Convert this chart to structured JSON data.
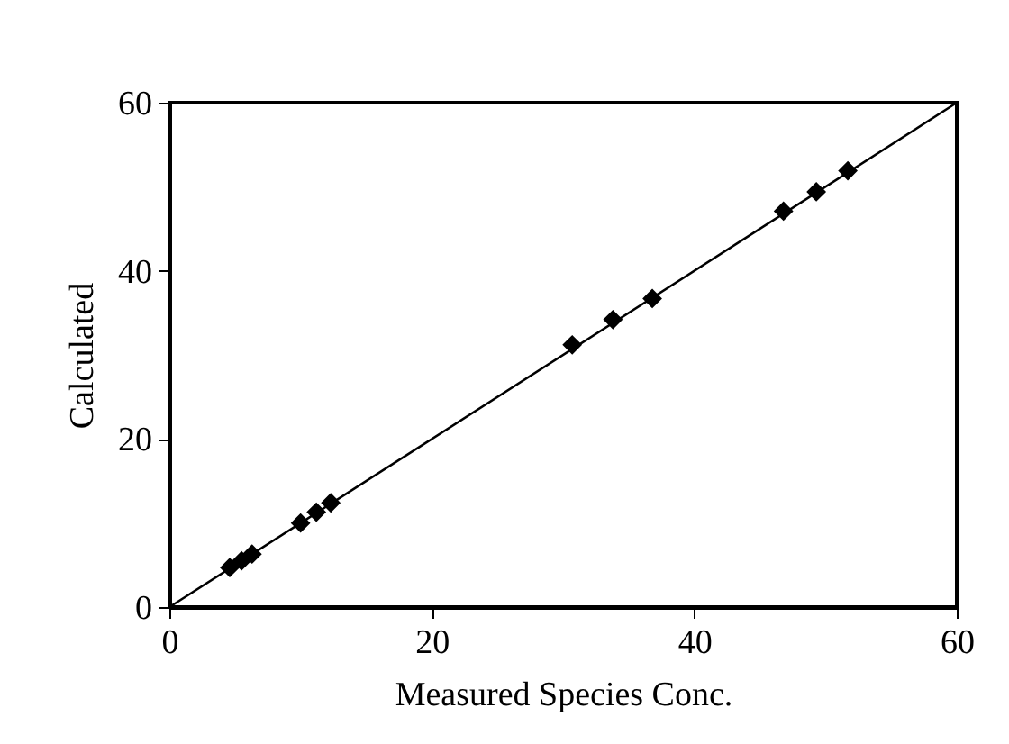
{
  "chart_data": {
    "type": "scatter",
    "xlabel": "Measured Species Conc.",
    "ylabel": "Calculated",
    "xlim": [
      0,
      60
    ],
    "ylim": [
      0,
      60
    ],
    "xticks": [
      0,
      20,
      40,
      60
    ],
    "yticks": [
      0,
      20,
      40,
      60
    ],
    "grid": false,
    "series": [
      {
        "type": "scatter",
        "marker": "diamond",
        "color": "#000000",
        "x": [
          4.6,
          5.5,
          6.3,
          10,
          11.2,
          12.3,
          30.7,
          33.8,
          36.8,
          46.8,
          49.3,
          51.7
        ],
        "values": [
          4.7,
          5.5,
          6.3,
          10,
          11.3,
          12.4,
          31.2,
          34.2,
          36.7,
          47.1,
          49.4,
          51.9
        ]
      },
      {
        "type": "line",
        "marker": "none",
        "color": "#000000",
        "x": [
          0,
          60
        ],
        "values": [
          0,
          60
        ]
      }
    ]
  }
}
